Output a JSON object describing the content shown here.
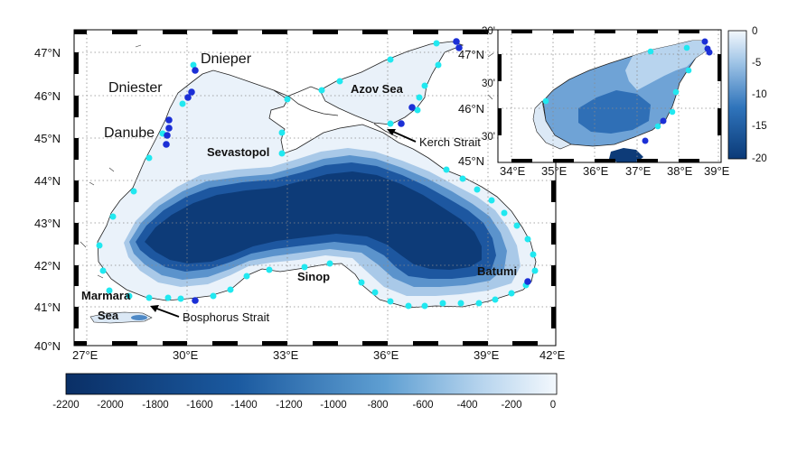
{
  "main_map": {
    "lon_ticks": [
      "27°E",
      "30°E",
      "33°E",
      "36°E",
      "39°E",
      "42°E"
    ],
    "lat_ticks": [
      "47°N",
      "46°N",
      "45°N",
      "44°N",
      "43°N",
      "42°N",
      "41°N",
      "40°N"
    ],
    "labels": {
      "dnieper": "Dnieper",
      "dniester": "Dniester",
      "danube": "Danube",
      "azov_sea": "Azov Sea",
      "kerch_strait": "Kerch Strait",
      "sevastopol": "Sevastopol",
      "sinop": "Sinop",
      "batumi": "Batumi",
      "marmara": "Marmara",
      "sea": "Sea",
      "bosphorus_strait": "Bosphorus Strait"
    }
  },
  "main_colorbar": {
    "ticks": [
      "-2200",
      "-2000",
      "-1800",
      "-1600",
      "-1400",
      "-1200",
      "-1000",
      "-800",
      "-600",
      "-400",
      "-200",
      "0"
    ]
  },
  "inset_map": {
    "lon_ticks": [
      "34°E",
      "35°E",
      "36°E",
      "37°E",
      "38°E",
      "39°E"
    ],
    "lat_ticks": [
      "47°N",
      "46°N",
      "45°N"
    ],
    "half_ticks": [
      "30'",
      "30'",
      "30'"
    ],
    "top_tick": "30'"
  },
  "inset_colorbar": {
    "ticks": [
      "0",
      "-5",
      "-10",
      "-15",
      "-20"
    ]
  },
  "colors": {
    "deep": "#0d3b78",
    "shelf": "#eaf2fa",
    "station_cyan": "#20e8f0",
    "station_blue": "#1b2fd6"
  }
}
